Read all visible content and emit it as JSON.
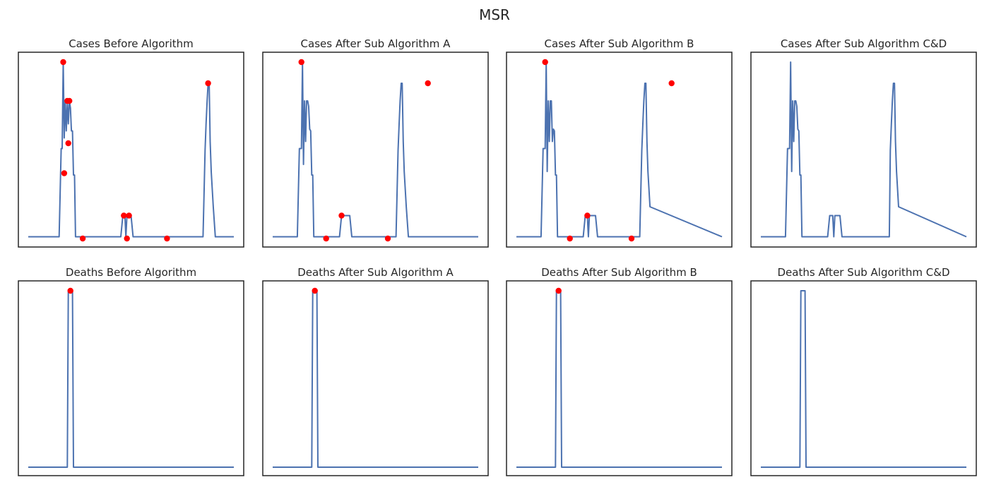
{
  "suptitle": "MSR",
  "colors": {
    "line": "#4c72b0",
    "marker": "#ff0000",
    "frame": "#262626",
    "background": "#ffffff"
  },
  "chart_data": [
    {
      "type": "line",
      "title": "Cases Before Algorithm",
      "ylim": [
        0,
        1
      ],
      "grid": false,
      "x": [
        0,
        30,
        32,
        33,
        34,
        35,
        36,
        37,
        38,
        39,
        40,
        41,
        42,
        43,
        44,
        45,
        46,
        50,
        52,
        90,
        92,
        94,
        95,
        96,
        98,
        100,
        102,
        112,
        114,
        170,
        172,
        173,
        174,
        175,
        176,
        177,
        178,
        180,
        182,
        200
      ],
      "y": [
        0.01,
        0.01,
        0.51,
        0.51,
        1.0,
        0.57,
        0.78,
        0.61,
        0.77,
        0.65,
        0.78,
        0.74,
        0.61,
        0.61,
        0.36,
        0.36,
        0.01,
        0.01,
        0.01,
        0.01,
        0.13,
        0.13,
        0.01,
        0.13,
        0.13,
        0.13,
        0.01,
        0.01,
        0.01,
        0.01,
        0.5,
        0.65,
        0.78,
        0.88,
        0.88,
        0.55,
        0.38,
        0.18,
        0.01,
        0.01
      ],
      "markers": [
        {
          "x": 34,
          "y": 1.0
        },
        {
          "x": 35,
          "y": 0.37
        },
        {
          "x": 38,
          "y": 0.78
        },
        {
          "x": 39,
          "y": 0.54
        },
        {
          "x": 40,
          "y": 0.78
        },
        {
          "x": 53,
          "y": 0.0
        },
        {
          "x": 93,
          "y": 0.13
        },
        {
          "x": 96,
          "y": 0.0
        },
        {
          "x": 98,
          "y": 0.13
        },
        {
          "x": 135,
          "y": 0.0
        },
        {
          "x": 175,
          "y": 0.88
        }
      ]
    },
    {
      "type": "line",
      "title": "Cases After Sub Algorithm A",
      "ylim": [
        0,
        1
      ],
      "grid": false,
      "x": [
        0,
        24,
        26,
        28,
        29,
        30,
        31,
        32,
        33,
        34,
        35,
        36,
        37,
        38,
        39,
        40,
        41,
        42,
        44,
        46,
        65,
        67,
        69,
        70,
        74,
        75,
        77,
        79,
        115,
        120,
        122,
        123,
        124,
        125,
        126,
        127,
        128,
        130,
        132,
        200
      ],
      "y": [
        0.01,
        0.01,
        0.51,
        0.51,
        1.0,
        0.42,
        0.78,
        0.55,
        0.78,
        0.78,
        0.75,
        0.62,
        0.61,
        0.36,
        0.36,
        0.01,
        0.01,
        0.01,
        0.01,
        0.01,
        0.01,
        0.13,
        0.13,
        0.13,
        0.13,
        0.13,
        0.01,
        0.01,
        0.01,
        0.01,
        0.5,
        0.65,
        0.78,
        0.88,
        0.88,
        0.55,
        0.38,
        0.18,
        0.01,
        0.01
      ],
      "markers": [
        {
          "x": 28,
          "y": 1.0
        },
        {
          "x": 52,
          "y": 0.0
        },
        {
          "x": 67,
          "y": 0.13
        },
        {
          "x": 112,
          "y": 0.0
        },
        {
          "x": 151,
          "y": 0.88
        }
      ]
    },
    {
      "type": "line",
      "title": "Cases After Sub Algorithm B",
      "ylim": [
        0,
        1
      ],
      "grid": false,
      "x": [
        0,
        24,
        26,
        28,
        29,
        30,
        31,
        32,
        33,
        34,
        35,
        36,
        37,
        38,
        39,
        40,
        41,
        42,
        44,
        46,
        65,
        67,
        68,
        69,
        70,
        71,
        74,
        77,
        79,
        115,
        120,
        122,
        123,
        124,
        125,
        126,
        127,
        128,
        130,
        200
      ],
      "y": [
        0.01,
        0.01,
        0.51,
        0.51,
        1.0,
        0.38,
        0.78,
        0.55,
        0.78,
        0.78,
        0.55,
        0.62,
        0.61,
        0.36,
        0.36,
        0.01,
        0.01,
        0.01,
        0.01,
        0.01,
        0.01,
        0.13,
        0.13,
        0.13,
        0.01,
        0.13,
        0.13,
        0.13,
        0.01,
        0.01,
        0.01,
        0.5,
        0.65,
        0.78,
        0.88,
        0.88,
        0.55,
        0.38,
        0.18,
        0.01
      ],
      "markers": [
        {
          "x": 28,
          "y": 1.0
        },
        {
          "x": 52,
          "y": 0.0
        },
        {
          "x": 69,
          "y": 0.13
        },
        {
          "x": 112,
          "y": 0.0
        },
        {
          "x": 151,
          "y": 0.88
        }
      ]
    },
    {
      "type": "line",
      "title": "Cases After Sub Algorithm C&D",
      "ylim": [
        0,
        1
      ],
      "grid": false,
      "x": [
        0,
        24,
        26,
        28,
        29,
        30,
        31,
        32,
        33,
        34,
        35,
        36,
        37,
        38,
        39,
        40,
        41,
        42,
        44,
        46,
        65,
        67,
        69,
        70,
        71,
        72,
        74,
        77,
        79,
        115,
        125,
        126,
        127,
        128,
        129,
        130,
        131,
        132,
        134,
        200
      ],
      "y": [
        0.01,
        0.01,
        0.51,
        0.51,
        1.0,
        0.38,
        0.78,
        0.55,
        0.78,
        0.78,
        0.75,
        0.62,
        0.61,
        0.36,
        0.36,
        0.01,
        0.01,
        0.01,
        0.01,
        0.01,
        0.01,
        0.13,
        0.13,
        0.13,
        0.01,
        0.13,
        0.13,
        0.13,
        0.01,
        0.01,
        0.01,
        0.5,
        0.65,
        0.78,
        0.88,
        0.88,
        0.55,
        0.38,
        0.18,
        0.01
      ],
      "markers": []
    },
    {
      "type": "line",
      "title": "Deaths Before Algorithm",
      "ylim": [
        0,
        1
      ],
      "grid": false,
      "x": [
        0,
        38,
        39,
        43,
        44,
        200
      ],
      "y": [
        0.0,
        0.0,
        1.0,
        1.0,
        0.0,
        0.0
      ],
      "markers": [
        {
          "x": 41,
          "y": 1.0
        }
      ]
    },
    {
      "type": "line",
      "title": "Deaths After Sub Algorithm A",
      "ylim": [
        0,
        1
      ],
      "grid": false,
      "x": [
        0,
        38,
        39,
        43,
        44,
        200
      ],
      "y": [
        0.0,
        0.0,
        1.0,
        1.0,
        0.0,
        0.0
      ],
      "markers": [
        {
          "x": 41,
          "y": 1.0
        }
      ]
    },
    {
      "type": "line",
      "title": "Deaths After Sub Algorithm B",
      "ylim": [
        0,
        1
      ],
      "grid": false,
      "x": [
        0,
        38,
        39,
        43,
        44,
        200
      ],
      "y": [
        0.0,
        0.0,
        1.0,
        1.0,
        0.0,
        0.0
      ],
      "markers": [
        {
          "x": 41,
          "y": 1.0
        }
      ]
    },
    {
      "type": "line",
      "title": "Deaths After Sub Algorithm C&D",
      "ylim": [
        0,
        1
      ],
      "grid": false,
      "x": [
        0,
        38,
        39,
        43,
        44,
        200
      ],
      "y": [
        0.0,
        0.0,
        1.0,
        1.0,
        0.0,
        0.0
      ],
      "markers": []
    }
  ]
}
